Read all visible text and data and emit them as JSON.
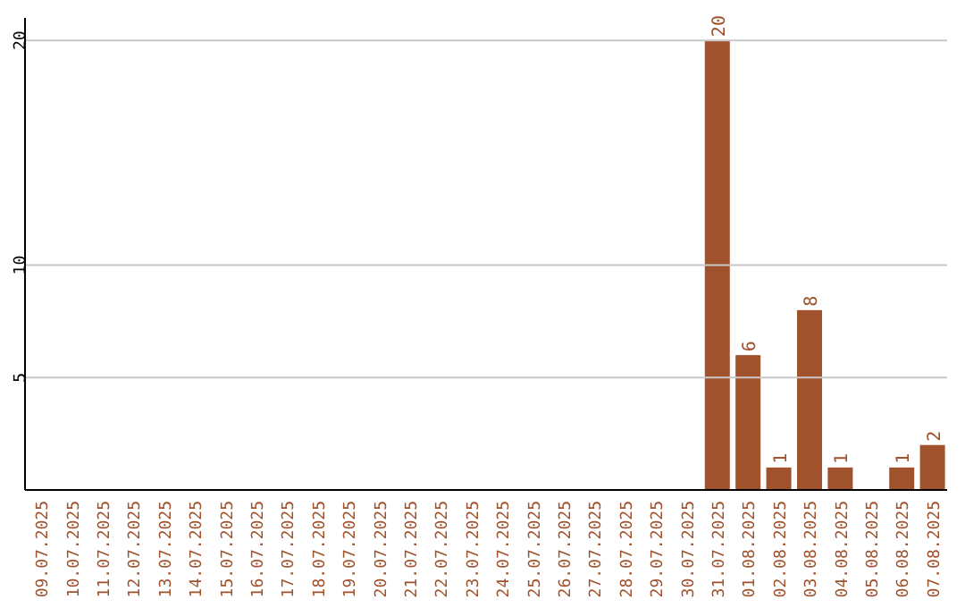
{
  "chart_data": {
    "type": "bar",
    "categories": [
      "09.07.2025",
      "10.07.2025",
      "11.07.2025",
      "12.07.2025",
      "13.07.2025",
      "14.07.2025",
      "15.07.2025",
      "16.07.2025",
      "17.07.2025",
      "18.07.2025",
      "19.07.2025",
      "20.07.2025",
      "21.07.2025",
      "22.07.2025",
      "23.07.2025",
      "24.07.2025",
      "25.07.2025",
      "26.07.2025",
      "27.07.2025",
      "28.07.2025",
      "29.07.2025",
      "30.07.2025",
      "31.07.2025",
      "01.08.2025",
      "02.08.2025",
      "03.08.2025",
      "04.08.2025",
      "05.08.2025",
      "06.08.2025",
      "07.08.2025"
    ],
    "values": [
      0,
      0,
      0,
      0,
      0,
      0,
      0,
      0,
      0,
      0,
      0,
      0,
      0,
      0,
      0,
      0,
      0,
      0,
      0,
      0,
      0,
      0,
      20,
      6,
      1,
      8,
      1,
      0,
      1,
      2
    ],
    "value_labels": [
      null,
      null,
      null,
      null,
      null,
      null,
      null,
      null,
      null,
      null,
      null,
      null,
      null,
      null,
      null,
      null,
      null,
      null,
      null,
      null,
      null,
      null,
      "20",
      "6",
      "1",
      "8",
      "1",
      null,
      "1",
      "2"
    ],
    "color": "#a0522d",
    "ylim": [
      0,
      21
    ],
    "yticks": [
      5,
      10,
      20
    ],
    "grid": "y"
  }
}
